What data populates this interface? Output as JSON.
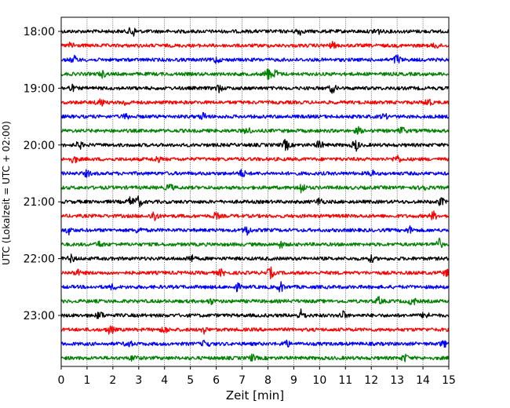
{
  "chart_data": {
    "type": "line",
    "title": "",
    "xlabel": "Zeit  [min]",
    "ylabel": "UTC (Lokalzeit = UTC + 02:00)",
    "xlim": [
      0,
      15
    ],
    "x_ticks": [
      "0",
      "1",
      "2",
      "3",
      "4",
      "5",
      "6",
      "7",
      "8",
      "9",
      "10",
      "11",
      "12",
      "13",
      "14",
      "15"
    ],
    "y_tick_labels": [
      "18:00",
      "19:00",
      "20:00",
      "21:00",
      "22:00",
      "23:00"
    ],
    "grid": "vertical dotted at each minute",
    "trace_colors": [
      "#000000",
      "#ff0000",
      "#0000ff",
      "#008000"
    ],
    "traces": [
      {
        "start": "18:00",
        "color": "#000000",
        "events": [
          [
            2.75,
            1.0
          ],
          [
            9.2,
            0.6
          ],
          [
            12.2,
            0.7
          ]
        ]
      },
      {
        "start": "18:15",
        "color": "#ff0000",
        "events": [
          [
            0.4,
            0.6
          ],
          [
            10.5,
            0.5
          ],
          [
            14.5,
            0.4
          ]
        ]
      },
      {
        "start": "18:30",
        "color": "#0000ff",
        "events": [
          [
            0.5,
            0.6
          ],
          [
            6.0,
            0.5
          ],
          [
            13.0,
            0.9
          ]
        ]
      },
      {
        "start": "18:45",
        "color": "#008000",
        "events": [
          [
            1.6,
            0.5
          ],
          [
            8.0,
            1.0
          ],
          [
            8.3,
            0.6
          ]
        ]
      },
      {
        "start": "19:00",
        "color": "#000000",
        "events": [
          [
            0.4,
            0.5
          ],
          [
            6.1,
            0.6
          ],
          [
            10.5,
            0.7
          ]
        ]
      },
      {
        "start": "19:15",
        "color": "#ff0000",
        "events": [
          [
            1.5,
            0.8
          ],
          [
            2.5,
            0.5
          ],
          [
            14.2,
            0.7
          ]
        ]
      },
      {
        "start": "19:30",
        "color": "#0000ff",
        "events": [
          [
            2.5,
            0.4
          ],
          [
            5.5,
            0.6
          ],
          [
            12.5,
            0.4
          ]
        ]
      },
      {
        "start": "19:45",
        "color": "#008000",
        "events": [
          [
            7.2,
            0.6
          ],
          [
            11.5,
            0.5
          ],
          [
            13.2,
            0.6
          ]
        ]
      },
      {
        "start": "20:00",
        "color": "#000000",
        "events": [
          [
            0.7,
            0.6
          ],
          [
            8.7,
            0.9
          ],
          [
            10.0,
            0.7
          ],
          [
            11.4,
            1.0
          ]
        ]
      },
      {
        "start": "20:15",
        "color": "#ff0000",
        "events": [
          [
            0.5,
            0.6
          ],
          [
            3.7,
            0.5
          ],
          [
            13.0,
            0.7
          ]
        ]
      },
      {
        "start": "20:30",
        "color": "#0000ff",
        "events": [
          [
            1.0,
            0.5
          ],
          [
            7.0,
            0.6
          ],
          [
            12.0,
            0.5
          ]
        ]
      },
      {
        "start": "20:45",
        "color": "#008000",
        "events": [
          [
            4.2,
            0.6
          ],
          [
            9.3,
            1.0
          ],
          [
            14.0,
            0.6
          ]
        ]
      },
      {
        "start": "21:00",
        "color": "#000000",
        "events": [
          [
            2.7,
            0.8
          ],
          [
            3.0,
            0.9
          ],
          [
            10.0,
            0.7
          ],
          [
            14.7,
            0.6
          ]
        ]
      },
      {
        "start": "21:15",
        "color": "#ff0000",
        "events": [
          [
            3.6,
            1.0
          ],
          [
            6.0,
            0.5
          ],
          [
            14.4,
            0.7
          ]
        ]
      },
      {
        "start": "21:30",
        "color": "#0000ff",
        "events": [
          [
            0.3,
            0.6
          ],
          [
            3.0,
            0.5
          ],
          [
            7.2,
            0.9
          ],
          [
            13.5,
            0.6
          ]
        ]
      },
      {
        "start": "21:45",
        "color": "#008000",
        "events": [
          [
            1.5,
            0.5
          ],
          [
            8.5,
            0.5
          ],
          [
            14.6,
            1.0
          ]
        ]
      },
      {
        "start": "22:00",
        "color": "#000000",
        "events": [
          [
            0.4,
            0.6
          ],
          [
            5.0,
            0.7
          ],
          [
            12.0,
            0.5
          ]
        ]
      },
      {
        "start": "22:15",
        "color": "#ff0000",
        "events": [
          [
            0.6,
            0.5
          ],
          [
            6.2,
            0.5
          ],
          [
            8.1,
            0.9
          ],
          [
            14.9,
            0.5
          ]
        ]
      },
      {
        "start": "22:30",
        "color": "#0000ff",
        "events": [
          [
            2.0,
            0.4
          ],
          [
            6.8,
            0.6
          ],
          [
            8.5,
            0.8
          ]
        ]
      },
      {
        "start": "22:45",
        "color": "#008000",
        "events": [
          [
            5.8,
            0.4
          ],
          [
            12.3,
            0.6
          ],
          [
            13.6,
            0.7
          ]
        ]
      },
      {
        "start": "23:00",
        "color": "#000000",
        "events": [
          [
            1.5,
            0.7
          ],
          [
            9.3,
            1.0
          ],
          [
            10.9,
            0.7
          ],
          [
            14.1,
            0.6
          ]
        ]
      },
      {
        "start": "23:15",
        "color": "#ff0000",
        "events": [
          [
            1.9,
            0.8
          ],
          [
            4.0,
            0.6
          ],
          [
            5.5,
            0.6
          ]
        ]
      },
      {
        "start": "23:30",
        "color": "#0000ff",
        "events": [
          [
            2.6,
            0.6
          ],
          [
            5.6,
            0.7
          ],
          [
            8.7,
            0.6
          ],
          [
            14.8,
            0.5
          ]
        ]
      },
      {
        "start": "23:45",
        "color": "#008000",
        "events": [
          [
            2.8,
            0.5
          ],
          [
            7.4,
            0.5
          ],
          [
            13.3,
            0.6
          ]
        ]
      }
    ]
  }
}
